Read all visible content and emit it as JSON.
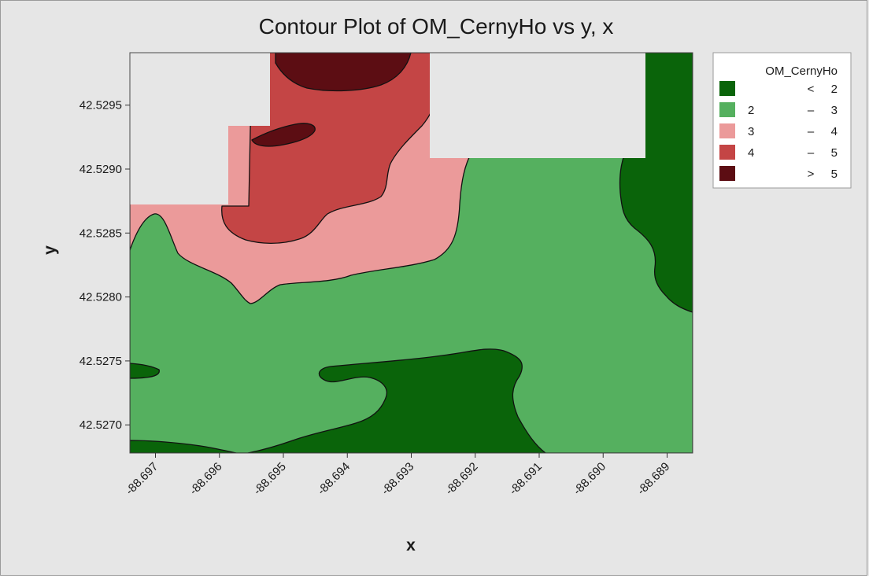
{
  "chart_data": {
    "type": "contour",
    "title": "Contour Plot of OM_CernyHo vs y, x",
    "xlabel": "x",
    "ylabel": "y",
    "x_ticks": [
      "-88.697",
      "-88.696",
      "-88.695",
      "-88.694",
      "-88.693",
      "-88.692",
      "-88.691",
      "-88.690",
      "-88.689"
    ],
    "y_ticks": [
      "42.5295",
      "42.5290",
      "42.5285",
      "42.5280",
      "42.5275",
      "42.5270"
    ],
    "xlim": [
      -88.6974,
      -88.6886
    ],
    "ylim": [
      42.52678,
      42.52991
    ],
    "legend": {
      "title": "OM_CernyHo",
      "position": "right",
      "entries": [
        {
          "low": "",
          "op": "<",
          "high": "2",
          "color": "#0a640a"
        },
        {
          "low": "2",
          "op": "–",
          "high": "3",
          "color": "#55b05f"
        },
        {
          "low": "3",
          "op": "–",
          "high": "4",
          "color": "#eb9a9a"
        },
        {
          "low": "4",
          "op": "–",
          "high": "5",
          "color": "#c44545"
        },
        {
          "low": "",
          "op": ">",
          "high": "5",
          "color": "#5c0d13"
        }
      ]
    },
    "colors": {
      "lt2": "#0a640a",
      "2to3": "#55b05f",
      "3to4": "#eb9a9a",
      "4to5": "#c44545",
      "gt5": "#5c0d13",
      "missing": "#e6e6e6"
    }
  }
}
